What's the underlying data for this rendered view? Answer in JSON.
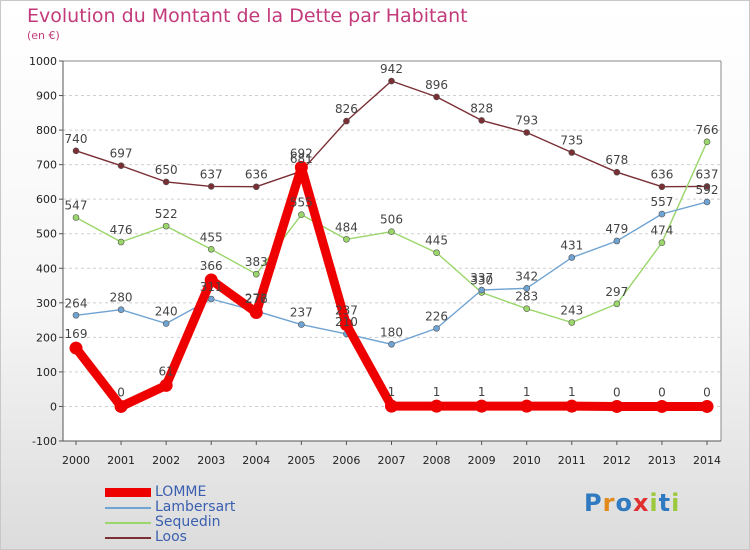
{
  "header": {
    "title": "Evolution du Montant de la Dette par Habitant",
    "subtitle": "(en €)"
  },
  "logo": {
    "text": "Proxiti",
    "colors": [
      "#2f7ac0",
      "#e08a1e",
      "#2f7ac0",
      "#e03030",
      "#9bc83c",
      "#2f7ac0",
      "#9bc83c"
    ]
  },
  "chart_data": {
    "type": "line",
    "title": "Evolution du Montant de la Dette par Habitant",
    "subtitle": "(en €)",
    "xlabel": "",
    "ylabel": "",
    "x": [
      "2000",
      "2001",
      "2002",
      "2003",
      "2004",
      "2005",
      "2006",
      "2007",
      "2008",
      "2009",
      "2010",
      "2011",
      "2012",
      "2013",
      "2014"
    ],
    "ylim": [
      -100,
      1000
    ],
    "yticks": [
      -100,
      0,
      100,
      200,
      300,
      400,
      500,
      600,
      700,
      800,
      900,
      1000
    ],
    "grid": "horizontal dashed",
    "legend_position": "bottom-left",
    "series": [
      {
        "name": "LOMME",
        "color": "#ee0000",
        "emphasis": true,
        "values": [
          169,
          0,
          61,
          366,
          272,
          692,
          237,
          1,
          1,
          1,
          1,
          1,
          0,
          0,
          0
        ],
        "labels": [
          "169",
          "0",
          "61",
          "366",
          "272",
          "692",
          "237",
          "1",
          "1",
          "1",
          "1",
          "1",
          "0",
          "0",
          "0"
        ]
      },
      {
        "name": "Lambersart",
        "color": "#6fa3d2",
        "emphasis": false,
        "values": [
          264,
          280,
          240,
          311,
          276,
          237,
          210,
          180,
          226,
          337,
          342,
          431,
          479,
          557,
          592
        ],
        "labels": [
          "264",
          "280",
          "240",
          "311",
          "276",
          "237",
          "210",
          "180",
          "226",
          "337",
          "342",
          "431",
          "479",
          "557",
          "592"
        ]
      },
      {
        "name": "Sequedin",
        "color": "#9ad66a",
        "emphasis": false,
        "values": [
          547,
          476,
          522,
          455,
          383,
          555,
          484,
          506,
          445,
          330,
          283,
          243,
          297,
          474,
          766
        ],
        "labels": [
          "547",
          "476",
          "522",
          "455",
          "383",
          "555",
          "484",
          "506",
          "445",
          "330",
          "283",
          "243",
          "297",
          "474",
          "766"
        ]
      },
      {
        "name": "Loos",
        "color": "#7a2f35",
        "emphasis": false,
        "values": [
          740,
          697,
          650,
          637,
          636,
          681,
          826,
          942,
          896,
          828,
          793,
          735,
          678,
          636,
          637
        ],
        "labels": [
          "740",
          "697",
          "650",
          "637",
          "636",
          "681",
          "826",
          "942",
          "896",
          "828",
          "793",
          "735",
          "678",
          "636",
          "637"
        ]
      }
    ]
  }
}
